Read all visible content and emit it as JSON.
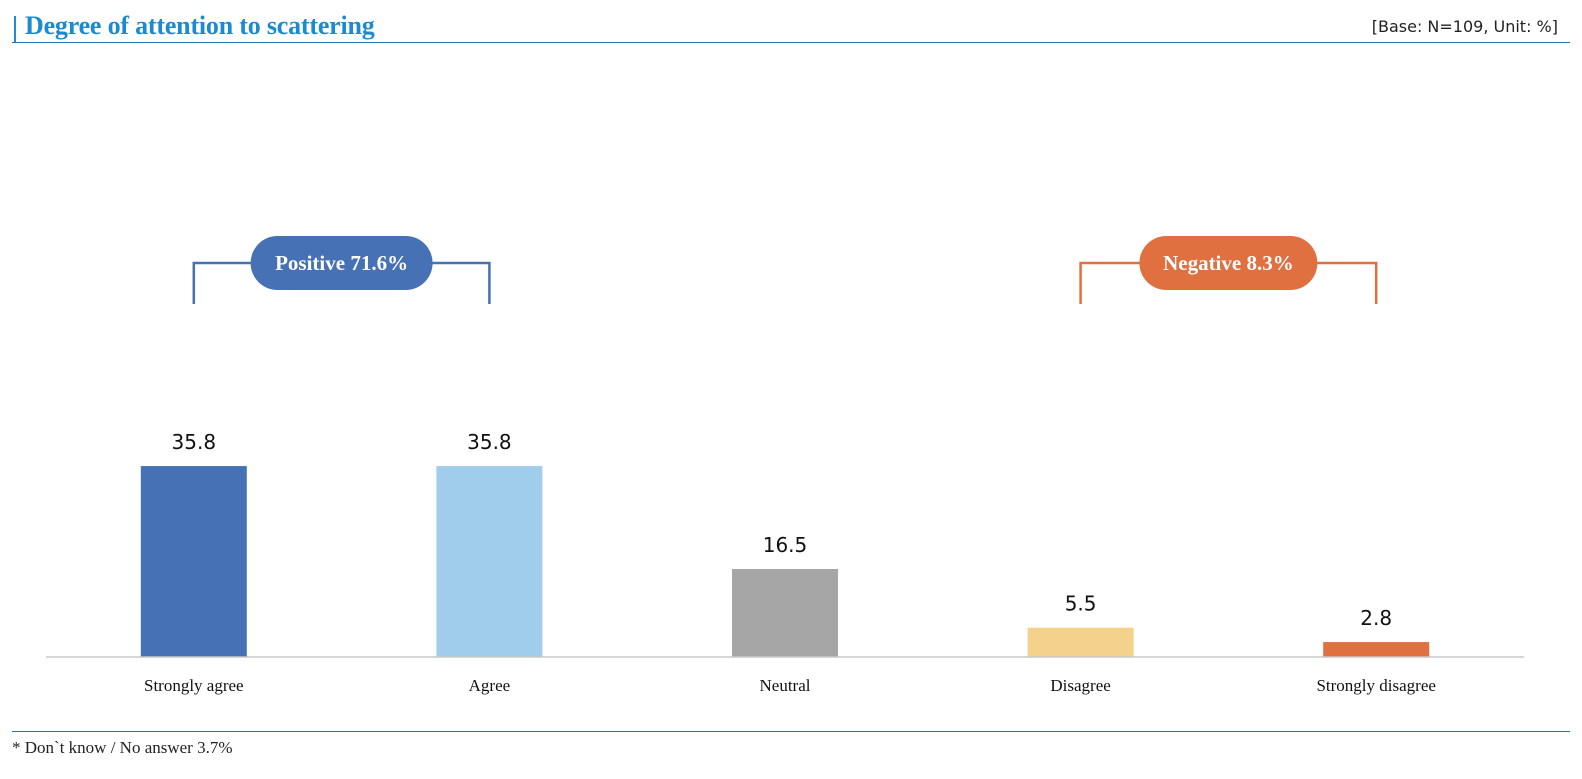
{
  "header": {
    "title": "Degree of attention to scattering",
    "base_note": "[Base: N=109, Unit: %]"
  },
  "footnote": "* Don`t know / No answer 3.7%",
  "groups": [
    {
      "label": "Positive 71.6%",
      "color": "#4671b4",
      "from_category": 0,
      "to_category": 1
    },
    {
      "label": "Negative 8.3%",
      "color": "#e07040",
      "from_category": 3,
      "to_category": 4
    }
  ],
  "chart_data": {
    "type": "bar",
    "title": "Degree of attention to scattering",
    "categories": [
      "Strongly agree",
      "Agree",
      "Neutral",
      "Disagree",
      "Strongly disagree"
    ],
    "values": [
      35.8,
      35.8,
      16.5,
      5.5,
      2.8
    ],
    "value_labels": [
      "35.8",
      "35.8",
      "16.5",
      "5.5",
      "2.8"
    ],
    "colors": [
      "#4671b4",
      "#a0cdeb",
      "#a6a6a6",
      "#f5d28c",
      "#e07040"
    ],
    "ylim": [
      0,
      36
    ],
    "xlabel": "",
    "ylabel": "",
    "grid": false,
    "legend": "none"
  }
}
